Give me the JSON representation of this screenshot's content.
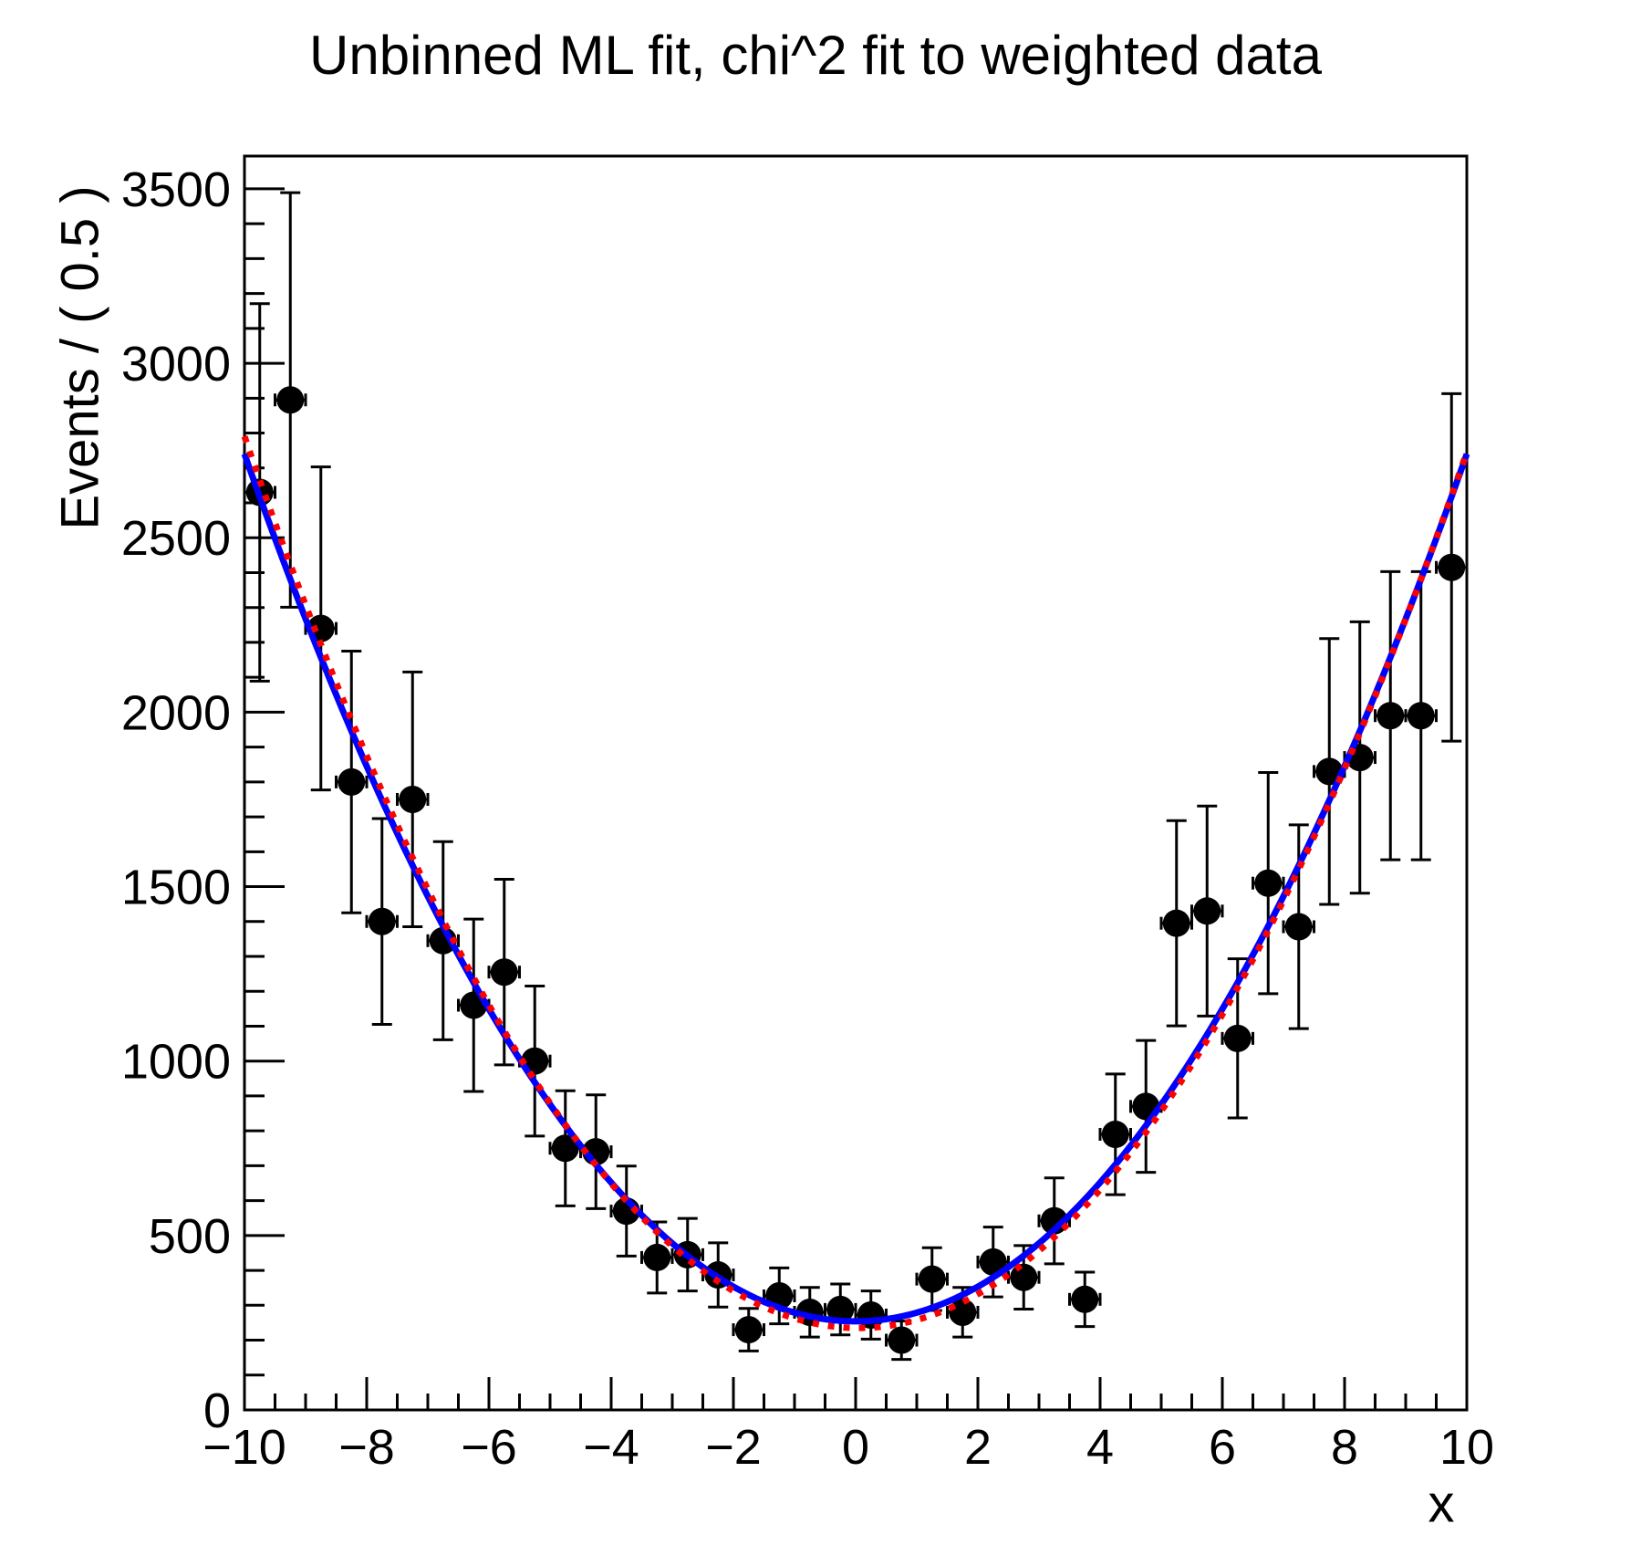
{
  "chart_data": {
    "type": "scatter",
    "title": "Unbinned ML fit, chi^2 fit to weighted data",
    "xlabel": "x",
    "ylabel": "Events / ( 0.5 )",
    "xlim": [
      -10,
      10
    ],
    "ylim": [
      0,
      3594
    ],
    "grid": false,
    "legend": "none",
    "x_tick_values": [
      -10,
      -8,
      -6,
      -4,
      -2,
      0,
      2,
      4,
      6,
      8,
      10
    ],
    "x_tick_labels": [
      "−10",
      "−8",
      "−6",
      "−4",
      "−2",
      "0",
      "2",
      "4",
      "6",
      "8",
      "10"
    ],
    "x_minor_step": 0.5,
    "y_tick_values": [
      0,
      500,
      1000,
      1500,
      2000,
      2500,
      3000,
      3500
    ],
    "y_tick_labels": [
      "0",
      "500",
      "1000",
      "1500",
      "2000",
      "2500",
      "3000",
      "3500"
    ],
    "y_minor_step": 100,
    "colors": {
      "data": "#000000",
      "chi2_fit": "#0000ff",
      "ml_fit": "#ff0000",
      "frame": "#000000"
    },
    "series": [
      {
        "name": "weighted-data-points",
        "type": "errorbar",
        "color": "#000000",
        "marker": "filled-circle",
        "bin_width": 0.5,
        "xerr": 0.25,
        "x": [
          -9.75,
          -9.25,
          -8.75,
          -8.25,
          -7.75,
          -7.25,
          -6.75,
          -6.25,
          -5.75,
          -5.25,
          -4.75,
          -4.25,
          -3.75,
          -3.25,
          -2.75,
          -2.25,
          -1.75,
          -1.25,
          -0.75,
          -0.25,
          0.25,
          0.75,
          1.25,
          1.75,
          2.25,
          2.75,
          3.25,
          3.75,
          4.25,
          4.75,
          5.25,
          5.75,
          6.25,
          6.75,
          7.25,
          7.75,
          8.25,
          8.75,
          9.25,
          9.75
        ],
        "y": [
          2630,
          2895,
          2240,
          1800,
          1400,
          1750,
          1345,
          1160,
          1255,
          1000,
          750,
          740,
          570,
          437,
          445,
          387,
          230,
          327,
          280,
          288,
          272,
          200,
          375,
          280,
          424,
          380,
          542,
          317,
          790,
          870,
          1395,
          1430,
          1065,
          1510,
          1385,
          1830,
          1870,
          1990,
          1990,
          2415
        ],
        "yerr": [
          541,
          594,
          463,
          375,
          295,
          365,
          284,
          247,
          266,
          215,
          165,
          163,
          129,
          102,
          104,
          92,
          61,
          80,
          71,
          73,
          69,
          55,
          90,
          71,
          100,
          91,
          123,
          78,
          173,
          189,
          294,
          301,
          228,
          317,
          292,
          381,
          389,
          413,
          413,
          498
        ]
      },
      {
        "name": "chi2-fit-curve",
        "type": "curve",
        "style": "solid",
        "color": "#0000ff",
        "poly": [
          254,
          0,
          24.86
        ]
      },
      {
        "name": "unbinned-ml-fit-curve",
        "type": "curve",
        "style": "dotted",
        "color": "#ff0000",
        "poly": [
          235,
          -2.25,
          25.33
        ]
      }
    ]
  }
}
